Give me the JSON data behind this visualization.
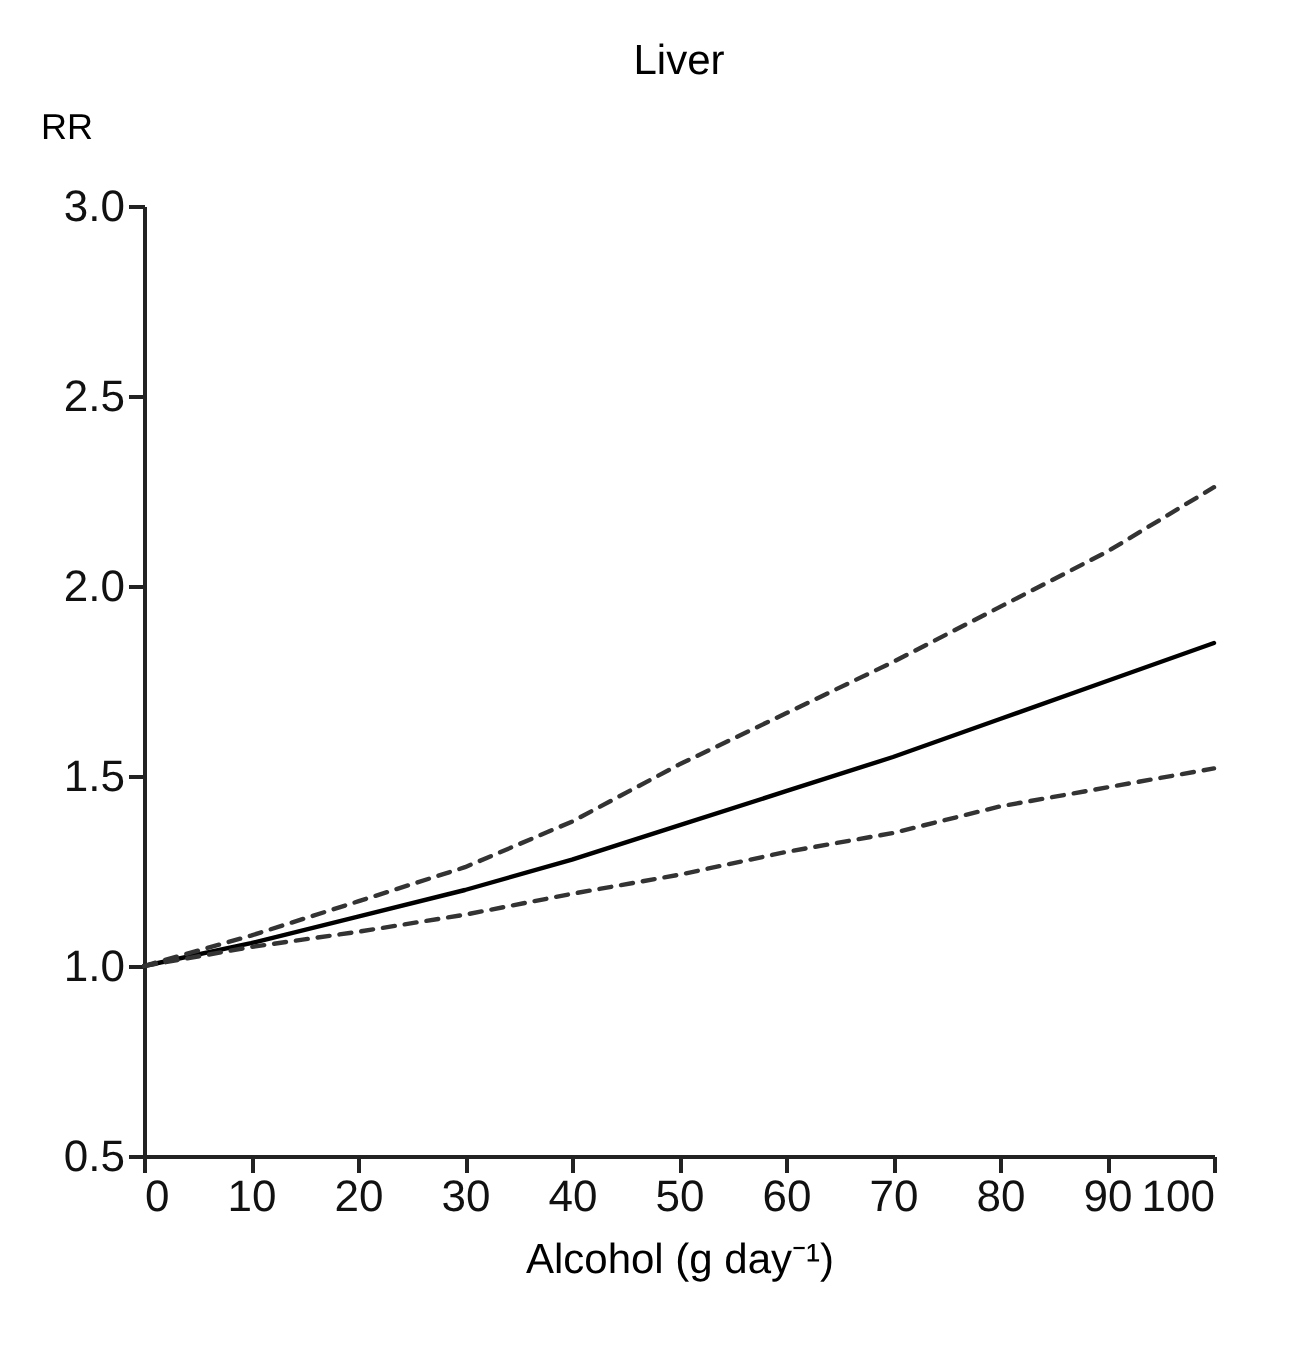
{
  "chart_data": {
    "type": "line",
    "title": "Liver",
    "xlabel": "Alcohol (g day⁻¹)",
    "ylabel": "RR",
    "x": [
      0,
      10,
      20,
      30,
      40,
      50,
      60,
      70,
      80,
      90,
      100
    ],
    "series": [
      {
        "color": "#000000",
        "line_style": "solid",
        "values": [
          1.0,
          1.06,
          1.13,
          1.2,
          1.28,
          1.37,
          1.46,
          1.55,
          1.65,
          1.75,
          1.85
        ]
      },
      {
        "color": "#333333",
        "line_style": "dashed",
        "values": [
          1.0,
          1.08,
          1.17,
          1.26,
          1.38,
          1.53,
          1.665,
          1.8,
          1.945,
          2.09,
          2.26
        ]
      },
      {
        "color": "#333333",
        "line_style": "dashed",
        "values": [
          1.0,
          1.05,
          1.09,
          1.135,
          1.19,
          1.24,
          1.3,
          1.35,
          1.42,
          1.47,
          1.52
        ]
      }
    ],
    "xlim": [
      0,
      100
    ],
    "xticks": [
      0,
      10,
      20,
      30,
      40,
      50,
      60,
      70,
      80,
      90,
      100
    ],
    "ylim": [
      0.5,
      3.0
    ],
    "yticks": [
      {
        "value": 0.5,
        "label": "0.5"
      },
      {
        "value": 1.0,
        "label": "1.0"
      },
      {
        "value": 1.5,
        "label": "1.5"
      },
      {
        "value": 2.0,
        "label": "2.0"
      },
      {
        "value": 2.5,
        "label": "2.5"
      },
      {
        "value": 3.0,
        "label": "3.0"
      }
    ],
    "grid": false,
    "marker": "none"
  }
}
